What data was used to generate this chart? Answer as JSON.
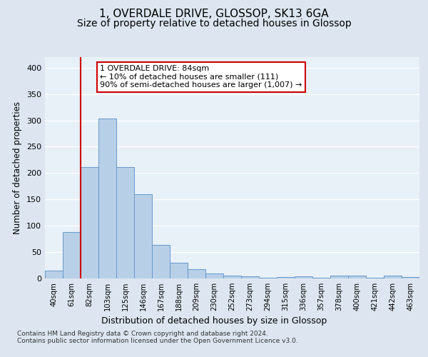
{
  "title_line1": "1, OVERDALE DRIVE, GLOSSOP, SK13 6GA",
  "title_line2": "Size of property relative to detached houses in Glossop",
  "xlabel": "Distribution of detached houses by size in Glossop",
  "ylabel": "Number of detached properties",
  "footnote": "Contains HM Land Registry data © Crown copyright and database right 2024.\nContains public sector information licensed under the Open Government Licence v3.0.",
  "bin_labels": [
    "40sqm",
    "61sqm",
    "82sqm",
    "103sqm",
    "125sqm",
    "146sqm",
    "167sqm",
    "188sqm",
    "209sqm",
    "230sqm",
    "252sqm",
    "273sqm",
    "294sqm",
    "315sqm",
    "336sqm",
    "357sqm",
    "378sqm",
    "400sqm",
    "421sqm",
    "442sqm",
    "463sqm"
  ],
  "bar_heights": [
    15,
    88,
    211,
    304,
    212,
    160,
    64,
    30,
    17,
    10,
    6,
    4,
    1,
    3,
    4,
    2,
    5,
    5,
    2,
    5,
    3
  ],
  "bar_color": "#b8cfe8",
  "bar_edge_color": "#6699cc",
  "bar_width": 1.0,
  "vline_x_index": 2,
  "vline_color": "#cc0000",
  "annotation_text": "1 OVERDALE DRIVE: 84sqm\n← 10% of detached houses are smaller (111)\n90% of semi-detached houses are larger (1,007) →",
  "ylim": [
    0,
    420
  ],
  "yticks": [
    0,
    50,
    100,
    150,
    200,
    250,
    300,
    350,
    400
  ],
  "bg_color": "#dde6f0",
  "plot_bg": "#e8f0f8",
  "grid_color": "#ffffff",
  "title_fontsize": 11,
  "subtitle_fontsize": 10
}
